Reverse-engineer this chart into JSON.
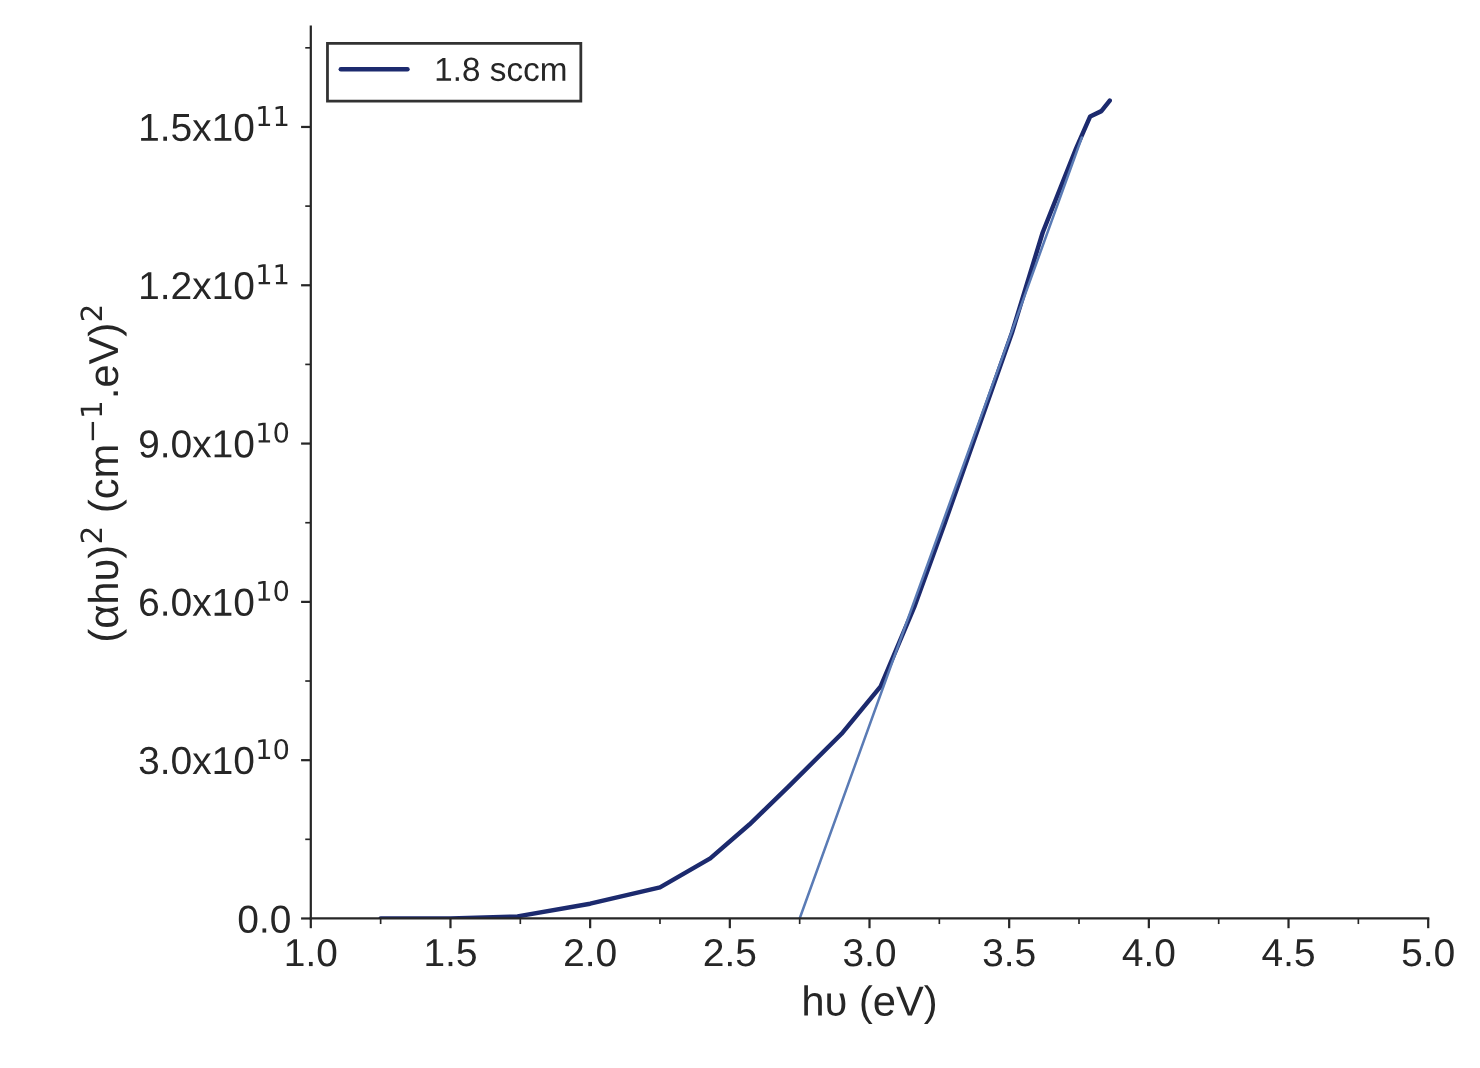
{
  "chart_data": {
    "type": "line",
    "xlabel": "hυ (eV)",
    "ylabel": "(αhυ)$^{2}$ (cm$^{−1}$.eV)$^{2}$",
    "series": [
      {
        "name": "1.8 sccm",
        "color": "#1c2a6e",
        "x": [
          1.25,
          1.5,
          1.74,
          2.0,
          2.25,
          2.43,
          2.57,
          2.71,
          2.9,
          3.04,
          3.16,
          3.27,
          3.39,
          3.51,
          3.62,
          3.74,
          3.79,
          3.83,
          3.86
        ],
        "values": [
          0,
          0,
          400000000,
          2800000000,
          5900000000,
          11400000000,
          17800000000,
          25000000000,
          35000000000,
          44000000000,
          59000000000,
          75000000000,
          93000000000,
          111000000000,
          130000000000,
          146000000000,
          152000000000,
          153000000000,
          155000000000
        ]
      },
      {
        "type": "line",
        "color": "#5a7bb5",
        "x": [
          2.75,
          3.76
        ],
        "values": [
          0,
          148000000000
        ]
      }
    ],
    "xlim": [
      1.0,
      5.0
    ],
    "xticks": [
      {
        "value": 1.0,
        "label": "1.0"
      },
      {
        "value": 1.5,
        "label": "1.5"
      },
      {
        "value": 2.0,
        "label": "2.0"
      },
      {
        "value": 2.5,
        "label": "2.5"
      },
      {
        "value": 3.0,
        "label": "3.0"
      },
      {
        "value": 3.5,
        "label": "3.5"
      },
      {
        "value": 4.0,
        "label": "4.0"
      },
      {
        "value": 4.5,
        "label": "4.5"
      },
      {
        "value": 5.0,
        "label": "5.0"
      }
    ],
    "ylim": [
      0,
      169000000000
    ],
    "yticks": [
      {
        "value": 0,
        "label": "0.0"
      },
      {
        "value": 30000000000,
        "label": "3.0x10$^{10}$"
      },
      {
        "value": 60000000000,
        "label": "6.0x10$^{10}$"
      },
      {
        "value": 90000000000,
        "label": "9.0x10$^{10}$"
      },
      {
        "value": 120000000000,
        "label": "1.2x10$^{11}$"
      },
      {
        "value": 150000000000,
        "label": "1.5x10$^{11}$"
      }
    ],
    "legend": "top left",
    "grid": false,
    "line_style": "solid"
  }
}
